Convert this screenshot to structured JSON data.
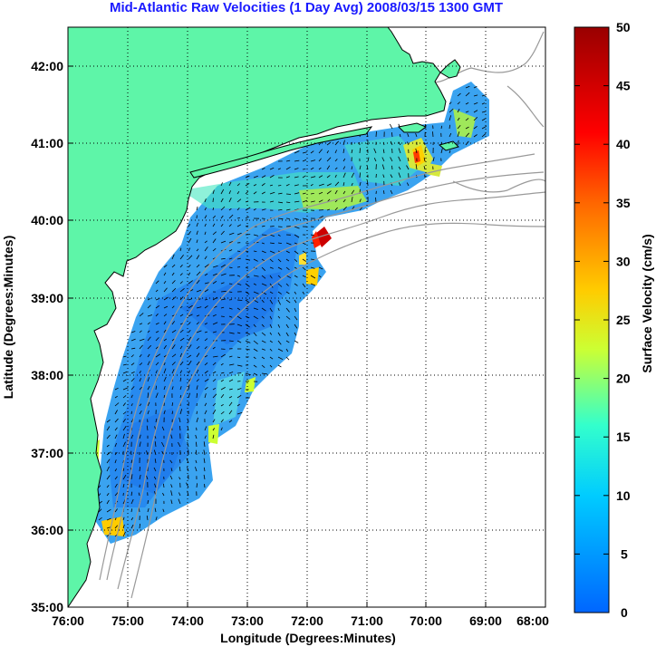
{
  "title": "Mid-Atlantic Raw Velocities (1 Day Avg) 2008/03/15 1300 GMT",
  "map": {
    "xlabel": "Longitude (Degrees:Minutes)",
    "ylabel": "Latitude (Degrees:Minutes)",
    "lon_ticks": [
      "76:00",
      "75:00",
      "74:00",
      "73:00",
      "72:00",
      "71:00",
      "70:00",
      "69:00",
      "68:00"
    ],
    "lat_ticks": [
      "42:00",
      "41:00",
      "40:00",
      "39:00",
      "38:00",
      "37:00",
      "36:00",
      "35:00"
    ],
    "lon_range": [
      -76,
      -68
    ],
    "lat_range": [
      35,
      42.5
    ],
    "colors": {
      "land": "#5ef5a8",
      "ocean": "#ffffff",
      "bathymetry": "#999999"
    }
  },
  "colorbar": {
    "label": "Surface Velocity (cm/s)",
    "ticks": [
      "50",
      "45",
      "40",
      "35",
      "30",
      "25",
      "20",
      "15",
      "10",
      "5",
      "0"
    ],
    "range": [
      0,
      50
    ],
    "colors": [
      "#0066ff",
      "#00ccff",
      "#33ffcc",
      "#ccff33",
      "#ffcc00",
      "#ff6600",
      "#ff0000",
      "#990000"
    ]
  }
}
